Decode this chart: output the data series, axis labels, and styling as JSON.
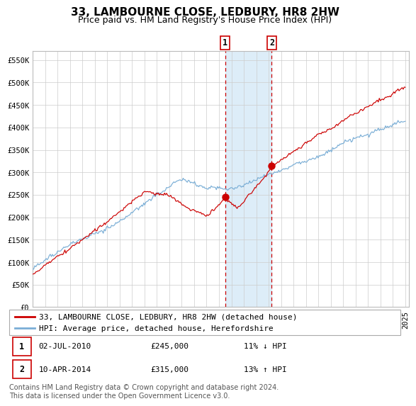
{
  "title": "33, LAMBOURNE CLOSE, LEDBURY, HR8 2HW",
  "subtitle": "Price paid vs. HM Land Registry's House Price Index (HPI)",
  "ylim": [
    0,
    570000
  ],
  "yticks": [
    0,
    50000,
    100000,
    150000,
    200000,
    250000,
    300000,
    350000,
    400000,
    450000,
    500000,
    550000
  ],
  "ytick_labels": [
    "£0",
    "£50K",
    "£100K",
    "£150K",
    "£200K",
    "£250K",
    "£300K",
    "£350K",
    "£400K",
    "£450K",
    "£500K",
    "£550K"
  ],
  "background_color": "#ffffff",
  "plot_bg_color": "#ffffff",
  "grid_color": "#cccccc",
  "hpi_line_color": "#7aaed6",
  "price_line_color": "#cc0000",
  "marker_color": "#cc0000",
  "dashed_line_color": "#cc0000",
  "shade_color": "#d8eaf7",
  "transaction1": {
    "date_str": "02-JUL-2010",
    "year": 2010.5,
    "price": 245000,
    "label": "1",
    "note": "11% ↓ HPI"
  },
  "transaction2": {
    "date_str": "10-APR-2014",
    "year": 2014.25,
    "price": 315000,
    "label": "2",
    "note": "13% ↑ HPI"
  },
  "legend_entry1": "33, LAMBOURNE CLOSE, LEDBURY, HR8 2HW (detached house)",
  "legend_entry2": "HPI: Average price, detached house, Herefordshire",
  "footnote": "Contains HM Land Registry data © Crown copyright and database right 2024.\nThis data is licensed under the Open Government Licence v3.0.",
  "title_fontsize": 11,
  "subtitle_fontsize": 9,
  "tick_fontsize": 7.5,
  "legend_fontsize": 8,
  "footnote_fontsize": 7
}
